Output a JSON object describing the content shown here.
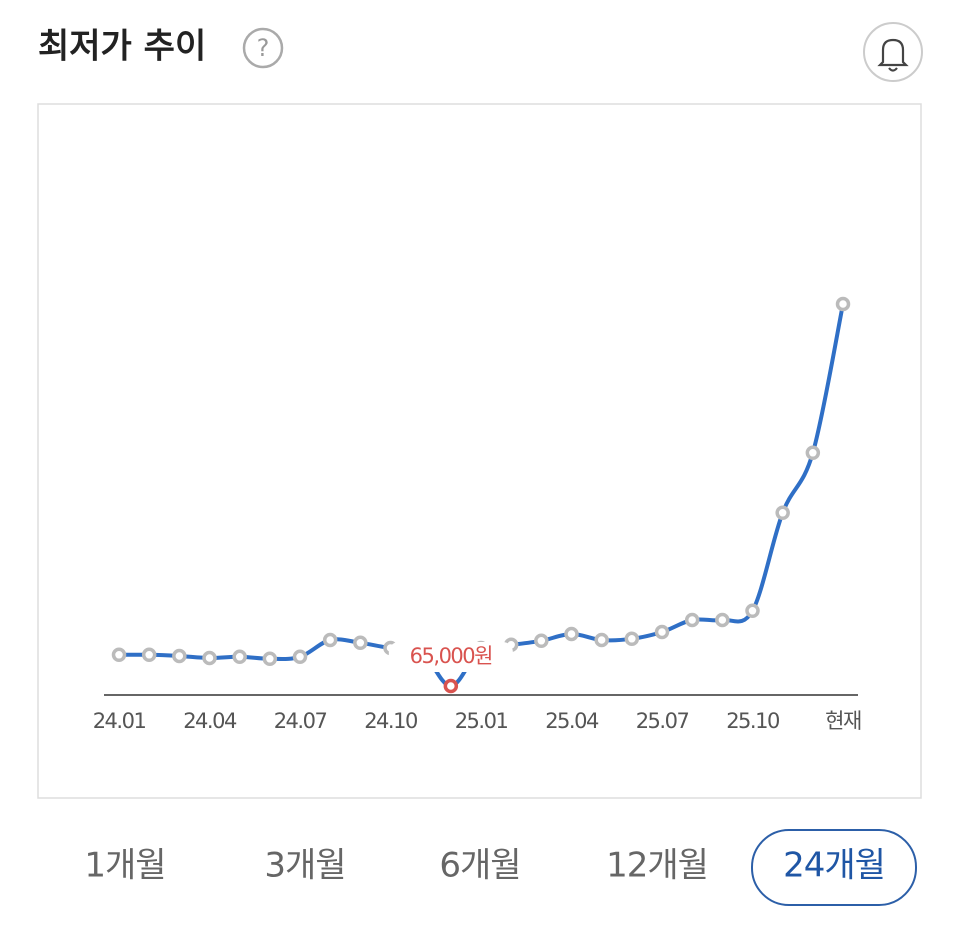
{
  "header": {
    "title": "최저가 추이",
    "help": "?"
  },
  "chart_data": {
    "type": "line",
    "categories": [
      "24.01",
      null,
      null,
      "24.04",
      null,
      null,
      "24.07",
      null,
      null,
      "24.10",
      null,
      null,
      "25.01",
      null,
      null,
      "25.04",
      null,
      null,
      "25.07",
      null,
      null,
      "25.10",
      null,
      null,
      "현재"
    ],
    "series": [
      {
        "color": "#2f6fc6",
        "values": [
          72800,
          72800,
          72500,
          72000,
          72300,
          71800,
          72300,
          76500,
          75800,
          74500,
          74000,
          65000,
          74500,
          75300,
          76300,
          78000,
          76500,
          76800,
          78500,
          81500,
          81500,
          83800,
          108300,
          123300,
          160500
        ],
        "value_labels": [
          null,
          null,
          null,
          null,
          null,
          null,
          null,
          null,
          null,
          null,
          null,
          "65,000원",
          null,
          null,
          null,
          null,
          null,
          null,
          null,
          null,
          null,
          null,
          null,
          null,
          null
        ]
      }
    ],
    "ylim": [
      62750,
      206500
    ]
  },
  "tabs": {
    "items": [
      "1개월",
      "3개월",
      "6개월",
      "12개월",
      "24개월"
    ],
    "selected": 4
  }
}
